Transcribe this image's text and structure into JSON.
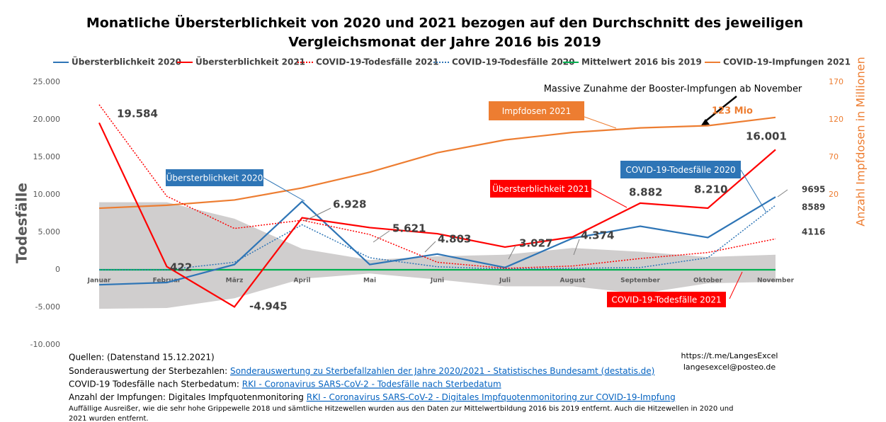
{
  "chart_data": {
    "type": "line",
    "title": [
      "Monatliche Übersterblichkeit von 2020 und 2021 bezogen auf den Durchschnitt des jeweiligen",
      "Vergleichsmonat der Jahre  2016 bis 2019"
    ],
    "y_label": "Todesfälle",
    "y2_label": "Anzahl Impfdosen in Millionen",
    "categories": [
      "Januar",
      "Februar",
      "März",
      "April",
      "Mai",
      "Juni",
      "Juli",
      "August",
      "September",
      "Oktober",
      "November"
    ],
    "ylim": [
      -10000,
      25000
    ],
    "yticks": [
      {
        "value": -10000,
        "label": "-10.000"
      },
      {
        "value": -5000,
        "label": "-5.000"
      },
      0,
      {
        "value": 5000,
        "label": "5.000"
      },
      {
        "value": 10000,
        "label": "10.000"
      },
      {
        "value": 15000,
        "label": "15.000"
      },
      {
        "value": 20000,
        "label": "20.000"
      },
      {
        "value": 25000,
        "label": "25.000"
      }
    ],
    "y2lim": [
      -180,
      170
    ],
    "y2ticks": [
      20,
      70,
      120,
      170
    ],
    "band": {
      "color": "#d0cece",
      "upper": [
        9000,
        9000,
        6800,
        2800,
        1300,
        1800,
        2000,
        2900,
        2400,
        1700,
        2000
      ],
      "lower": [
        -5200,
        -5100,
        -3800,
        -1200,
        -500,
        -1300,
        -2200,
        -2200,
        -3200,
        -1800,
        -1600
      ]
    },
    "series": [
      {
        "name": "Übersterblichkeit 2020",
        "color": "#2e75b6",
        "style": "solid",
        "values": [
          -2000,
          -1700,
          700,
          9100,
          700,
          2100,
          300,
          4200,
          5800,
          4300,
          9695
        ],
        "value_labels": [
          null,
          null,
          null,
          null,
          null,
          null,
          null,
          null,
          null,
          null,
          "9695"
        ]
      },
      {
        "name": "Übersterblichkeit 2021",
        "color": "#ff0000",
        "style": "solid",
        "values": [
          19584,
          422,
          -4945,
          6928,
          5621,
          4803,
          3027,
          4374,
          8882,
          8210,
          16001
        ],
        "value_labels": [
          "19.584",
          "422",
          "-4.945",
          "6.928",
          "5.621",
          "4.803",
          "3.027",
          "4.374",
          "8.882",
          "8.210",
          "16.001"
        ]
      },
      {
        "name": "COVID-19-Todesfälle 2021",
        "color": "#ff0000",
        "style": "dotted",
        "values": [
          22000,
          9800,
          5500,
          6600,
          4700,
          1000,
          200,
          500,
          1500,
          2300,
          4116
        ],
        "value_labels": [
          null,
          null,
          null,
          null,
          null,
          null,
          null,
          null,
          null,
          null,
          "4116"
        ]
      },
      {
        "name": "COVID-19-Todesfälle 2020",
        "color": "#2e75b6",
        "style": "dotted",
        "values": [
          0,
          0,
          1000,
          6000,
          1600,
          400,
          100,
          200,
          300,
          1600,
          8589
        ],
        "value_labels": [
          null,
          null,
          null,
          null,
          null,
          null,
          null,
          null,
          null,
          null,
          "8589"
        ]
      },
      {
        "name": "Mittelwert 2016 bis 2019",
        "color": "#00b050",
        "style": "solid",
        "values": [
          0,
          0,
          0,
          0,
          0,
          0,
          0,
          0,
          0,
          0,
          0
        ]
      },
      {
        "name": "COVID-19-Impfungen 2021",
        "color": "#ed7d31",
        "style": "solid",
        "axis": "y2",
        "values": [
          2,
          6,
          13,
          29,
          50,
          76,
          93,
          103,
          109,
          112,
          123
        ],
        "value_labels": [
          null,
          null,
          null,
          null,
          null,
          null,
          null,
          null,
          null,
          null,
          "123 Mio"
        ]
      }
    ],
    "annotations": [
      "Impfdosen 2021",
      "Übersterblichkeit 2020",
      "Übersterblichkeit 2021",
      "COVID-19-Todesfälle 2020",
      "COVID-19-Todesfälle 2021",
      "Massive Zunahme der Booster-Impfungen ab November"
    ],
    "notes": {
      "sources_title": "Quellen: (Datenstand 15.12.2021)",
      "lines": [
        {
          "text": "Sonderauswertung der Sterbezahlen: ",
          "link": "Sonderauswertung zu Sterbefallzahlen der Jahre 2020/2021 - Statistisches Bundesamt (destatis.de)"
        },
        {
          "text": "COVID-19 Todesfälle nach Sterbedatum: ",
          "link": "RKI - Coronavirus SARS-CoV-2 - Todesfälle nach Sterbedatum"
        },
        {
          "text": "Anzahl der Impfungen: Digitales Impfquotenmonitoring ",
          "link": "RKI - Coronavirus SARS-CoV-2 - Digitales Impfquotenmonitoring zur COVID-19-Impfung"
        }
      ],
      "remark": [
        "Auffällige Ausreißer, wie die sehr hohe Grippewelle 2018 und sämtliche Hitzewellen wurden aus den Daten zur Mittelwertbildung 2016 bis 2019 entfernt. Auch die Hitzewellen in 2020 und",
        "2021 wurden entfernt."
      ],
      "contact": [
        "https://t.me/LangesExcel",
        "langesexcel@posteo.de"
      ]
    }
  }
}
